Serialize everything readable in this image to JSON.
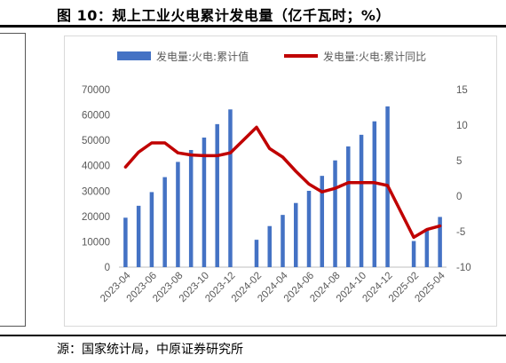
{
  "figure_title": "图 10：规上工业火电累计发电量（亿千瓦时；%）",
  "source": "源：国家统计局，中原证券研究所",
  "colors": {
    "bar": "#4472C4",
    "line": "#C00000",
    "axis": "#595959"
  },
  "chart_data": {
    "type": "bar+line",
    "categories": [
      "2023-04",
      "2023-05",
      "2023-06",
      "2023-07",
      "2023-08",
      "2023-09",
      "2023-10",
      "2023-11",
      "2023-12",
      "2024-01",
      "2024-02",
      "2024-03",
      "2024-04",
      "2024-05",
      "2024-06",
      "2024-07",
      "2024-08",
      "2024-09",
      "2024-10",
      "2024-11",
      "2024-12",
      "2025-01",
      "2025-02",
      "2025-03",
      "2025-04"
    ],
    "x_tick_labels": [
      "2023-04",
      "2023-06",
      "2023-08",
      "2023-10",
      "2023-12",
      "2024-02",
      "2024-04",
      "2024-06",
      "2024-08",
      "2024-10",
      "2024-12",
      "2025-02",
      "2025-04"
    ],
    "series": [
      {
        "name": "发电量:火电:累计值",
        "type": "bar",
        "axis": "left",
        "values": [
          19500,
          24200,
          29600,
          35500,
          41500,
          46200,
          51100,
          56400,
          62200,
          null,
          10800,
          16200,
          20600,
          25300,
          30100,
          36000,
          42100,
          47600,
          52200,
          57500,
          63400,
          null,
          10300,
          15200,
          19800
        ]
      },
      {
        "name": "发电量:火电:累计同比",
        "type": "line",
        "axis": "right",
        "values": [
          4.1,
          6.2,
          7.5,
          7.5,
          6.1,
          5.8,
          5.7,
          5.7,
          6.1,
          null,
          9.7,
          6.7,
          5.5,
          3.5,
          1.7,
          0.6,
          1.1,
          1.9,
          1.9,
          1.9,
          1.5,
          null,
          -5.8,
          -4.7,
          -4.2
        ]
      }
    ],
    "y_left": {
      "min": 0,
      "max": 70000,
      "ticks": [
        "0",
        "10000",
        "20000",
        "30000",
        "40000",
        "50000",
        "60000",
        "70000"
      ]
    },
    "y_right": {
      "min": -10,
      "max": 15,
      "ticks": [
        "-10",
        "-5",
        "0",
        "5",
        "10",
        "15"
      ]
    },
    "legend_position": "top",
    "grid": false
  }
}
